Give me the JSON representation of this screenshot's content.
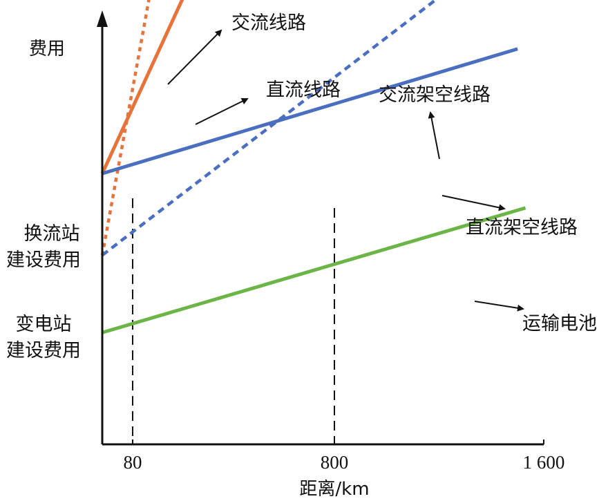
{
  "chart_data": {
    "type": "line",
    "title": "",
    "ylabel": "费用",
    "xlabel": "距离/km",
    "x_ticks": [
      "80",
      "800",
      "1 600"
    ],
    "y_labels": [
      {
        "lines": [
          "换流站",
          "建设费用"
        ],
        "key": "dc_station"
      },
      {
        "lines": [
          "变电站",
          "建设费用"
        ],
        "key": "ac_station"
      }
    ],
    "ylim": [
      0,
      100
    ],
    "xlim": [
      0,
      1600
    ],
    "series": [
      {
        "name": "交流线路",
        "color": "#e8733a",
        "style": "dotted",
        "points": [
          [
            0,
            44
          ],
          [
            260,
            147
          ]
        ]
      },
      {
        "name": "直流线路",
        "color": "#e8733a",
        "style": "solid",
        "points": [
          [
            0,
            63
          ],
          [
            430,
            128
          ]
        ]
      },
      {
        "name": "交流架空线路",
        "color": "#4a6fc0",
        "style": "dashed",
        "points": [
          [
            0,
            44
          ],
          [
            1500,
            118
          ]
        ]
      },
      {
        "name": "直流架空线路",
        "color": "#4a6fc0",
        "style": "solid",
        "points": [
          [
            0,
            63
          ],
          [
            1500,
            92
          ]
        ]
      },
      {
        "name": "运输电池",
        "color": "#6ab546",
        "style": "solid",
        "points": [
          [
            0,
            26
          ],
          [
            1530,
            55
          ]
        ]
      }
    ],
    "reference_lines": [
      {
        "x": 80,
        "label": "80"
      },
      {
        "x": 800,
        "label": "800"
      }
    ]
  }
}
